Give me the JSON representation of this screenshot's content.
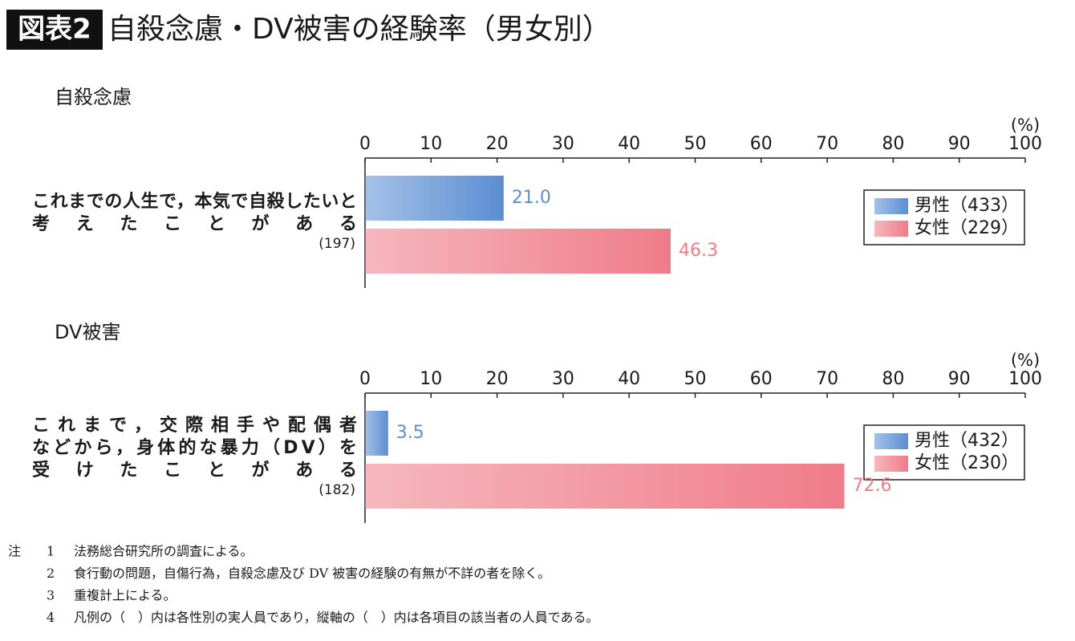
{
  "badge": "図表2",
  "title": "自殺念慮・DV被害の経験率（男女別）",
  "chart_data": [
    {
      "type": "bar",
      "orientation": "horizontal",
      "title": "自殺念慮",
      "unit": "(%)",
      "categories": [
        [
          "これまでの人生で，本気で自殺したいと",
          "考えたことがある"
        ]
      ],
      "category_counts": [
        "(197)"
      ],
      "series": [
        {
          "name": "男性（433）",
          "color": "#5b8ed3",
          "values": [
            21.0
          ],
          "value_labels": [
            "21.0"
          ]
        },
        {
          "name": "女性（229）",
          "color": "#ef7c88",
          "values": [
            46.3
          ]
        }
      ],
      "xlim": [
        0,
        100
      ],
      "xticks": [
        0,
        10,
        20,
        30,
        40,
        50,
        60,
        70,
        80,
        90,
        100
      ]
    },
    {
      "type": "bar",
      "orientation": "horizontal",
      "title": "DV被害",
      "unit": "(%)",
      "categories": [
        [
          "これまで，交際相手や配偶者",
          "などから，身体的な暴力（DV）を",
          "受けたことがある"
        ]
      ],
      "category_counts": [
        "(182)"
      ],
      "series": [
        {
          "name": "男性（432）",
          "color": "#5b8ed3",
          "values": [
            3.5
          ]
        },
        {
          "name": "女性（230）",
          "color": "#ef7c88",
          "values": [
            72.6
          ]
        }
      ],
      "xlim": [
        0,
        100
      ],
      "xticks": [
        0,
        10,
        20,
        30,
        40,
        50,
        60,
        70,
        80,
        90,
        100
      ]
    }
  ],
  "notes": {
    "label": "注",
    "items": [
      {
        "number": "1",
        "text": "法務総合研究所の調査による。"
      },
      {
        "number": "2",
        "text": "食行動の問題，自傷行為，自殺念慮及び DV 被害の経験の有無が不詳の者を除く。"
      },
      {
        "number": "3",
        "text": "重複計上による。"
      },
      {
        "number": "4",
        "text": "凡例の（　）内は各性別の実人員であり，縦軸の（　）内は各項目の該当者の人員である。"
      }
    ]
  }
}
